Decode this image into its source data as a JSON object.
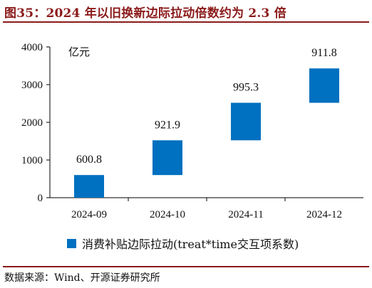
{
  "title": "图35：2024 年以旧换新边际拉动倍数约为 2.3 倍",
  "source": "数据来源：Wind、开源证券研究所",
  "colors": {
    "bar": "#0070C0",
    "rule": "#8B1A1A",
    "axis": "#000000"
  },
  "chart_data": {
    "type": "bar",
    "subtype": "waterfall",
    "unit_label": "亿元",
    "categories": [
      "2024-09",
      "2024-10",
      "2024-11",
      "2024-12"
    ],
    "series": [
      {
        "name": "消费补贴边际拉动(treat*time交互项系数)",
        "base": [
          0,
          600.8,
          1522.7,
          2518.0
        ],
        "values": [
          600.8,
          921.9,
          995.3,
          911.8
        ],
        "labels": [
          "600.8",
          "921.9",
          "995.3",
          "911.8"
        ]
      }
    ],
    "y_ticks": [
      0,
      1000,
      2000,
      3000,
      4000
    ],
    "ylim": [
      0,
      4000
    ],
    "grid": false,
    "legend_position": "bottom"
  }
}
